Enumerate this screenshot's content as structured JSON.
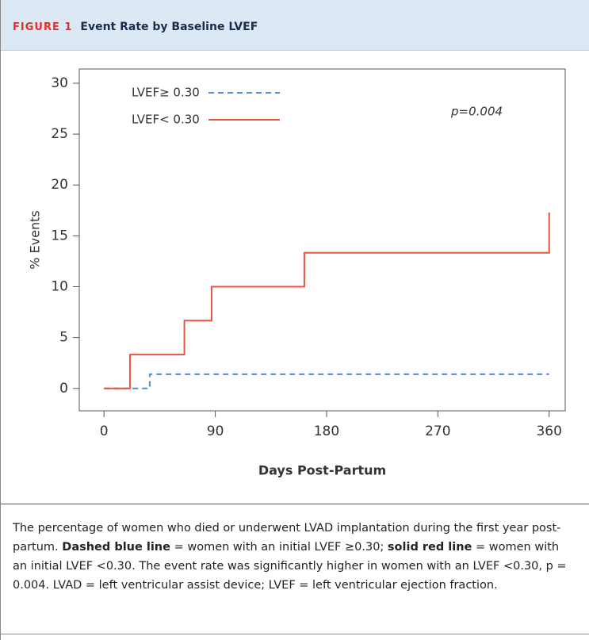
{
  "figure": {
    "label": "FIGURE 1",
    "title": "Event Rate by Baseline LVEF"
  },
  "chart_data": {
    "type": "line",
    "x_label": "Days Post-Partum",
    "y_label": "% Events",
    "annotation": "p=0.004",
    "xlim": [
      -20,
      373
    ],
    "ylim": [
      -2.2,
      31.4
    ],
    "xticks": [
      0,
      90,
      180,
      270,
      360
    ],
    "yticks": [
      0,
      5,
      10,
      15,
      20,
      25,
      30
    ],
    "legend": "upper left",
    "series": [
      {
        "name": "LVEF≥ 0.30",
        "color": "#4a90d9",
        "dashed": true,
        "x": [
          0,
          37,
          37,
          360
        ],
        "values": [
          0,
          0,
          1.4,
          1.4
        ]
      },
      {
        "name": "LVEF< 0.30",
        "color": "#e8553f",
        "dashed": false,
        "x": [
          0,
          21,
          21,
          65,
          65,
          87,
          87,
          162,
          162,
          360,
          360
        ],
        "values": [
          0,
          0,
          3.33,
          3.33,
          6.67,
          6.67,
          10,
          10,
          13.33,
          13.33,
          17.3
        ]
      }
    ]
  },
  "caption": [
    "The percentage of women who died or underwent LVAD implantation during the first year post-partum. ",
    "Dashed blue line",
    " = women with an initial LVEF ≥0.30; ",
    "solid red line",
    " = women with an initial LVEF <0.30. The event rate was significantly higher in women with an LVEF <0.30, p = 0.004. LVAD = left ventricular assist device; LVEF = left ventricular ejection fraction."
  ]
}
